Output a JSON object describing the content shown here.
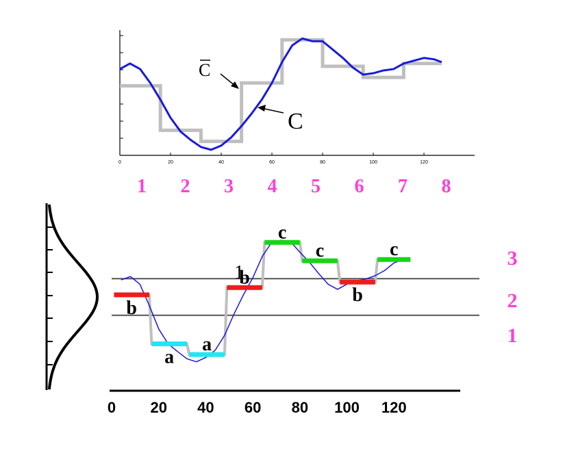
{
  "colors": {
    "signal_blue": "#1a1adb",
    "staircase_gray": "#bfbfbf",
    "segment_red": "#ee1c1c",
    "segment_cyan": "#22e6f0",
    "segment_green": "#17d617",
    "index_magenta": "#ff3fd4",
    "axis_black": "#000000",
    "threshold_gray": "#555555"
  },
  "top_plot": {
    "annotations": {
      "c_bar": "C",
      "c": "C"
    },
    "x_ticks": [
      "0",
      "20",
      "40",
      "60",
      "80",
      "100",
      "120"
    ],
    "segment_indices": [
      "1",
      "2",
      "3",
      "4",
      "5",
      "6",
      "7",
      "8"
    ],
    "signal": [
      [
        0,
        0.62
      ],
      [
        4,
        0.66
      ],
      [
        8,
        0.62
      ],
      [
        12,
        0.52
      ],
      [
        16,
        0.4
      ],
      [
        20,
        0.27
      ],
      [
        24,
        0.17
      ],
      [
        28,
        0.11
      ],
      [
        32,
        0.06
      ],
      [
        36,
        0.04
      ],
      [
        40,
        0.07
      ],
      [
        44,
        0.13
      ],
      [
        48,
        0.21
      ],
      [
        52,
        0.3
      ],
      [
        56,
        0.4
      ],
      [
        60,
        0.52
      ],
      [
        64,
        0.67
      ],
      [
        68,
        0.79
      ],
      [
        72,
        0.84
      ],
      [
        76,
        0.82
      ],
      [
        80,
        0.82
      ],
      [
        84,
        0.76
      ],
      [
        88,
        0.7
      ],
      [
        92,
        0.63
      ],
      [
        96,
        0.58
      ],
      [
        100,
        0.59
      ],
      [
        104,
        0.61
      ],
      [
        108,
        0.62
      ],
      [
        112,
        0.66
      ],
      [
        116,
        0.68
      ],
      [
        120,
        0.7
      ],
      [
        124,
        0.69
      ],
      [
        127,
        0.67
      ]
    ],
    "paa_levels": [
      0.5,
      0.18,
      0.1,
      0.52,
      0.83,
      0.64,
      0.56,
      0.66
    ],
    "y_range": [
      0,
      0.9
    ],
    "x_range": [
      0,
      140
    ]
  },
  "bottom_plot": {
    "x_ticks": [
      "0",
      "20",
      "40",
      "60",
      "80",
      "100",
      "120"
    ],
    "breakpoint_label": "1",
    "region_labels": [
      "3",
      "2",
      "1"
    ],
    "breakpoints": [
      -0.43,
      0.43
    ],
    "y_range": [
      -2.2,
      2.2
    ],
    "x_range": [
      0,
      140
    ],
    "segments": [
      {
        "symbol": "b",
        "level": 0.05,
        "color_key": "segment_red",
        "label_pos": "below"
      },
      {
        "symbol": "a",
        "level": -1.1,
        "color_key": "segment_cyan",
        "label_pos": "below"
      },
      {
        "symbol": "a",
        "level": -1.35,
        "color_key": "segment_cyan",
        "label_pos": "above"
      },
      {
        "symbol": "b",
        "level": 0.22,
        "color_key": "segment_red",
        "label_pos": "above"
      },
      {
        "symbol": "c",
        "level": 1.28,
        "color_key": "segment_green",
        "label_pos": "above"
      },
      {
        "symbol": "c",
        "level": 0.85,
        "color_key": "segment_green",
        "label_pos": "above"
      },
      {
        "symbol": "b",
        "level": 0.35,
        "color_key": "segment_red",
        "label_pos": "below"
      },
      {
        "symbol": "c",
        "level": 0.88,
        "color_key": "segment_green",
        "label_pos": "above"
      }
    ],
    "signal": [
      [
        4,
        0.4
      ],
      [
        8,
        0.48
      ],
      [
        12,
        0.3
      ],
      [
        16,
        -0.2
      ],
      [
        20,
        -0.75
      ],
      [
        24,
        -1.1
      ],
      [
        28,
        -1.28
      ],
      [
        32,
        -1.45
      ],
      [
        36,
        -1.52
      ],
      [
        40,
        -1.42
      ],
      [
        44,
        -1.25
      ],
      [
        48,
        -0.9
      ],
      [
        52,
        -0.4
      ],
      [
        56,
        0.05
      ],
      [
        60,
        0.45
      ],
      [
        64,
        0.95
      ],
      [
        68,
        1.28
      ],
      [
        72,
        1.33
      ],
      [
        76,
        1.3
      ],
      [
        80,
        1.05
      ],
      [
        84,
        0.82
      ],
      [
        88,
        0.55
      ],
      [
        92,
        0.3
      ],
      [
        96,
        0.18
      ],
      [
        100,
        0.3
      ],
      [
        104,
        0.38
      ],
      [
        108,
        0.42
      ],
      [
        112,
        0.5
      ],
      [
        116,
        0.62
      ],
      [
        120,
        0.8
      ],
      [
        124,
        0.88
      ],
      [
        127,
        0.86
      ]
    ]
  }
}
